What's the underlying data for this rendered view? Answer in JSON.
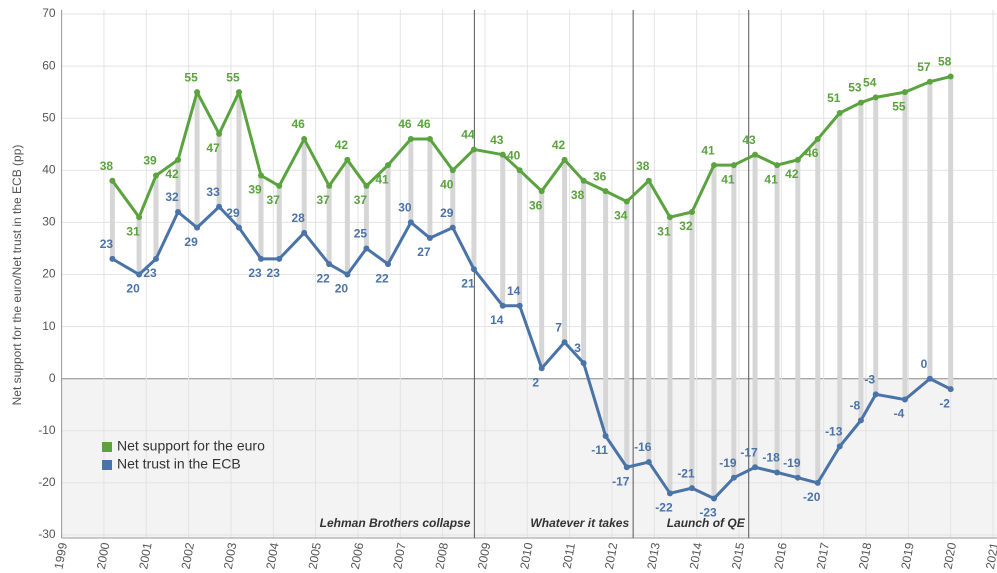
{
  "chart_data": {
    "type": "line",
    "y_label": "Net support for the euro/Net trust in the ECB (pp)",
    "x": [
      2000.2,
      2000.83,
      2001.23,
      2001.75,
      2002.2,
      2002.72,
      2003.19,
      2003.71,
      2004.14,
      2004.73,
      2005.32,
      2005.75,
      2006.2,
      2006.71,
      2007.25,
      2007.7,
      2008.24,
      2008.74,
      2009.42,
      2009.82,
      2010.34,
      2010.88,
      2011.33,
      2011.85,
      2012.35,
      2012.87,
      2013.37,
      2013.89,
      2014.41,
      2014.88,
      2015.38,
      2015.9,
      2016.39,
      2016.86,
      2017.38,
      2017.88,
      2018.23,
      2018.92,
      2019.51,
      2020.0
    ],
    "series": [
      {
        "name": "Net support for the euro",
        "color": "#5aa33e",
        "values": [
          38,
          31,
          39,
          42,
          55,
          47,
          55,
          39,
          37,
          46,
          37,
          42,
          37,
          41,
          46,
          46,
          40,
          44,
          43,
          40,
          36,
          42,
          38,
          36,
          34,
          38,
          31,
          32,
          41,
          41,
          43,
          41,
          42,
          46,
          51,
          53,
          54,
          55,
          57,
          58
        ]
      },
      {
        "name": "Net trust in the ECB",
        "color": "#4a73a8",
        "values": [
          23,
          20,
          23,
          32,
          29,
          33,
          29,
          23,
          23,
          28,
          22,
          20,
          25,
          22,
          30,
          27,
          29,
          21,
          14,
          14,
          2,
          7,
          3,
          -11,
          -17,
          -16,
          -22,
          -21,
          -23,
          -19,
          -17,
          -18,
          -19,
          -20,
          -13,
          -8,
          -3,
          -4,
          0,
          -2
        ]
      }
    ],
    "annotations": [
      {
        "x": 2008.75,
        "label": "Lehman Brothers collapse"
      },
      {
        "x": 2012.5,
        "label": "Whatever it takes"
      },
      {
        "x": 2015.23,
        "label": "Launch of QE"
      }
    ],
    "xlim": [
      1999,
      2021
    ],
    "xticks": [
      1999,
      2000,
      2001,
      2002,
      2003,
      2004,
      2005,
      2006,
      2007,
      2008,
      2009,
      2010,
      2011,
      2012,
      2013,
      2014,
      2015,
      2016,
      2017,
      2018,
      2019,
      2020,
      2021
    ],
    "ylim": [
      -30,
      70
    ],
    "yticks": [
      -30,
      -20,
      -10,
      0,
      10,
      20,
      30,
      40,
      50,
      60,
      70
    ],
    "grid": true,
    "legend": "lower left"
  }
}
